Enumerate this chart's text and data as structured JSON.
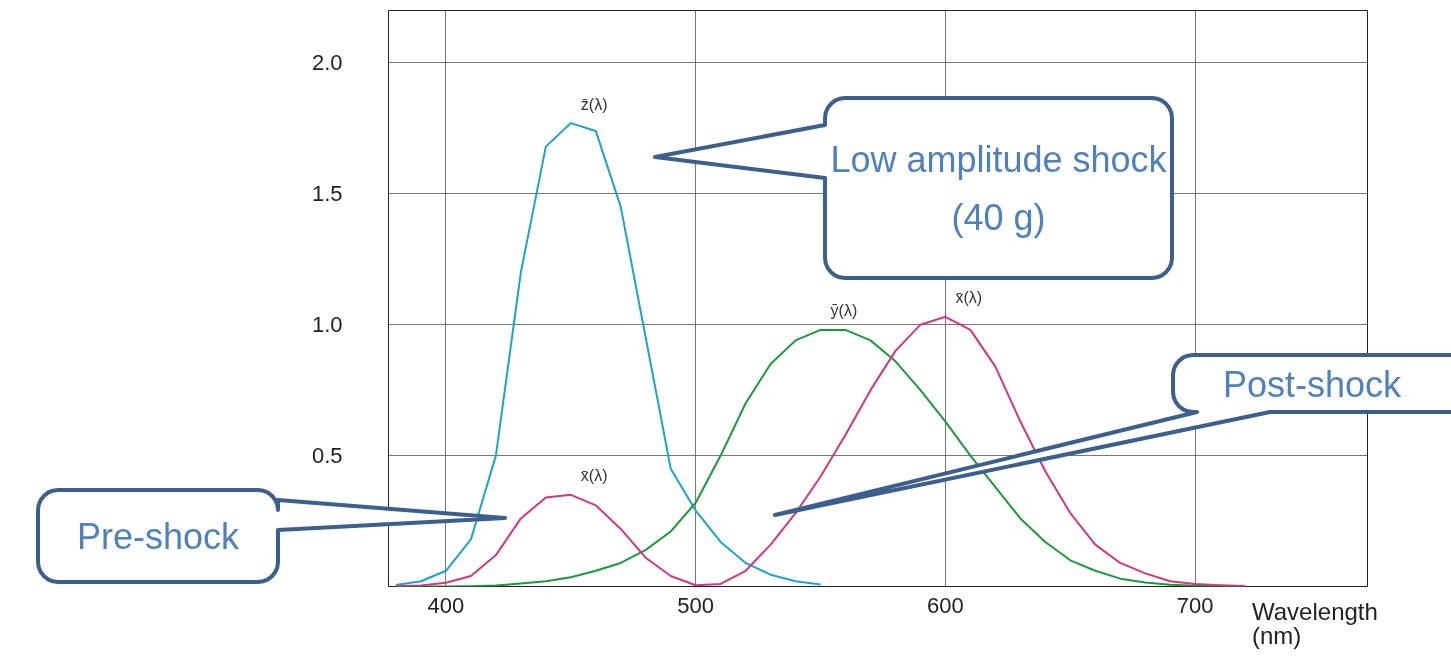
{
  "chart_data": {
    "type": "line",
    "xlabel": "Wavelength (nm)",
    "x": [
      380,
      390,
      400,
      410,
      420,
      430,
      440,
      450,
      460,
      470,
      480,
      490,
      500,
      510,
      520,
      530,
      540,
      550,
      560,
      570,
      580,
      590,
      600,
      610,
      620,
      630,
      640,
      650,
      660,
      670,
      680,
      690,
      700,
      710,
      720
    ],
    "series": [
      {
        "name": "z̄(λ)",
        "color": "#1ea3cc",
        "values": [
          0.006,
          0.02,
          0.06,
          0.18,
          0.5,
          1.2,
          1.68,
          1.77,
          1.74,
          1.45,
          0.95,
          0.45,
          0.29,
          0.17,
          0.09,
          0.045,
          0.02,
          0.008,
          null,
          null,
          null,
          null,
          null,
          null,
          null,
          null,
          null,
          null,
          null,
          null,
          null,
          null,
          null,
          null,
          null
        ]
      },
      {
        "name": "ȳ(λ)",
        "color": "#1b9a3c",
        "values": [
          0,
          0,
          0,
          0.001,
          0.004,
          0.011,
          0.02,
          0.035,
          0.06,
          0.09,
          0.14,
          0.21,
          0.32,
          0.5,
          0.7,
          0.85,
          0.94,
          0.98,
          0.98,
          0.94,
          0.86,
          0.75,
          0.63,
          0.5,
          0.38,
          0.26,
          0.17,
          0.1,
          0.06,
          0.03,
          0.015,
          0.007,
          0.003,
          0.001,
          0
        ]
      },
      {
        "name": "x̄(λ)",
        "color": "#d4367f",
        "values": [
          0.001,
          0.004,
          0.014,
          0.04,
          0.12,
          0.26,
          0.34,
          0.35,
          0.31,
          0.22,
          0.11,
          0.04,
          0.005,
          0.01,
          0.06,
          0.16,
          0.28,
          0.42,
          0.58,
          0.75,
          0.9,
          1.0,
          1.03,
          0.98,
          0.84,
          0.63,
          0.44,
          0.28,
          0.16,
          0.09,
          0.05,
          0.02,
          0.01,
          0.005,
          0.002
        ]
      }
    ],
    "xlim": [
      377,
      769
    ],
    "ylim": [
      0,
      2.2
    ],
    "xticks": [
      400,
      500,
      600,
      700
    ],
    "yticks": [
      0.5,
      {
        "value": 1,
        "label": "1.0"
      },
      1.5,
      {
        "value": 2,
        "label": "2.0"
      }
    ],
    "grid": true,
    "annotations": [
      "Low amplitude shock (40 g)",
      "Post-shock",
      "Pre-shock"
    ]
  }
}
